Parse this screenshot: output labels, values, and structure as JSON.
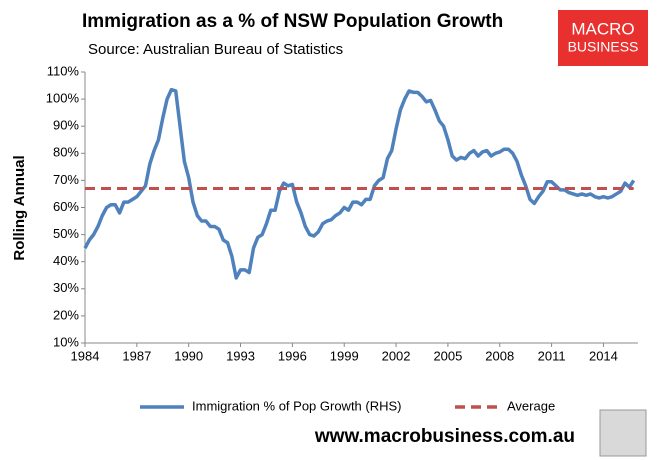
{
  "chart_data": {
    "type": "line",
    "title": "Immigration as a % of NSW Population Growth",
    "subtitle": "Source: Australian Bureau of Statistics",
    "y_label": "Rolling Annual",
    "logo": [
      "MACRO",
      "BUSINESS"
    ],
    "footer": "www.macrobusiness.com.au",
    "xlim": [
      1984,
      2016
    ],
    "xticks": [
      1984,
      1987,
      1990,
      1993,
      1996,
      1999,
      2002,
      2005,
      2008,
      2011,
      2014
    ],
    "ylim": [
      10,
      110
    ],
    "yticks": [
      {
        "value": 10,
        "label": "10%"
      },
      {
        "value": 20,
        "label": "20%"
      },
      {
        "value": 30,
        "label": "30%"
      },
      {
        "value": 40,
        "label": "40%"
      },
      {
        "value": 50,
        "label": "50%"
      },
      {
        "value": 60,
        "label": "60%"
      },
      {
        "value": 70,
        "label": "70%"
      },
      {
        "value": 80,
        "label": "80%"
      },
      {
        "value": 90,
        "label": "90%"
      },
      {
        "value": 100,
        "label": "100%"
      },
      {
        "value": 110,
        "label": "110%"
      }
    ],
    "grid": false,
    "legend": "bottom",
    "series": [
      {
        "name": "Immigration % of Pop Growth (RHS)",
        "color": "#4f81bd",
        "dashed": false,
        "x": [
          1984,
          1984.25,
          1984.5,
          1984.75,
          1985,
          1985.25,
          1985.5,
          1985.75,
          1986,
          1986.25,
          1986.5,
          1986.75,
          1987,
          1987.25,
          1987.5,
          1987.75,
          1988,
          1988.25,
          1988.5,
          1988.75,
          1989,
          1989.25,
          1989.5,
          1989.75,
          1990,
          1990.25,
          1990.5,
          1990.75,
          1991,
          1991.25,
          1991.5,
          1991.75,
          1992,
          1992.25,
          1992.5,
          1992.75,
          1993,
          1993.25,
          1993.5,
          1993.75,
          1994,
          1994.25,
          1994.5,
          1994.75,
          1995,
          1995.25,
          1995.5,
          1995.75,
          1996,
          1996.25,
          1996.5,
          1996.75,
          1997,
          1997.25,
          1997.5,
          1997.75,
          1998,
          1998.25,
          1998.5,
          1998.75,
          1999,
          1999.25,
          1999.5,
          1999.75,
          2000,
          2000.25,
          2000.5,
          2000.75,
          2001,
          2001.25,
          2001.5,
          2001.75,
          2002,
          2002.25,
          2002.5,
          2002.75,
          2003,
          2003.25,
          2003.5,
          2003.75,
          2004,
          2004.25,
          2004.5,
          2004.75,
          2005,
          2005.25,
          2005.5,
          2005.75,
          2006,
          2006.25,
          2006.5,
          2006.75,
          2007,
          2007.25,
          2007.5,
          2007.75,
          2008,
          2008.25,
          2008.5,
          2008.75,
          2009,
          2009.25,
          2009.5,
          2009.75,
          2010,
          2010.25,
          2010.5,
          2010.75,
          2011,
          2011.25,
          2011.5,
          2011.75,
          2012,
          2012.25,
          2012.5,
          2012.75,
          2013,
          2013.25,
          2013.5,
          2013.75,
          2014,
          2014.25,
          2014.5,
          2014.75,
          2015,
          2015.25,
          2015.5,
          2015.75
        ],
        "values": [
          45,
          48,
          50,
          53,
          57,
          60,
          61,
          61,
          58,
          62,
          62,
          63,
          64,
          66,
          68,
          76,
          81,
          85,
          93,
          100,
          103.5,
          103,
          90,
          77,
          71,
          62,
          57,
          55,
          55,
          53,
          53,
          52,
          48,
          47,
          42,
          34,
          37,
          37,
          36,
          45,
          49,
          50,
          54,
          59,
          59,
          66,
          69,
          68,
          68.5,
          62,
          58,
          53,
          50,
          49.5,
          51,
          54,
          55,
          55.5,
          57,
          58,
          60,
          59,
          62,
          62,
          61,
          63,
          63,
          68,
          70,
          71,
          78,
          81,
          89,
          96,
          100,
          103,
          102.5,
          102.5,
          101,
          99,
          99.5,
          96,
          92,
          90,
          85,
          79,
          77.5,
          78.5,
          78,
          80,
          81,
          79,
          80.5,
          81,
          79,
          80,
          80.5,
          81.5,
          81.5,
          80,
          77,
          72,
          68,
          63,
          61.5,
          64,
          66,
          69.5,
          69.5,
          68,
          66.5,
          66.5,
          65.5,
          65,
          64.5,
          65,
          64.5,
          65,
          64,
          63.5,
          64,
          63.5,
          64,
          65,
          66,
          69,
          67.5,
          70
        ]
      },
      {
        "name": "Average",
        "color": "#c0504d",
        "dashed": true,
        "x": [
          1984,
          2015.75
        ],
        "values": [
          67,
          67
        ]
      }
    ]
  }
}
